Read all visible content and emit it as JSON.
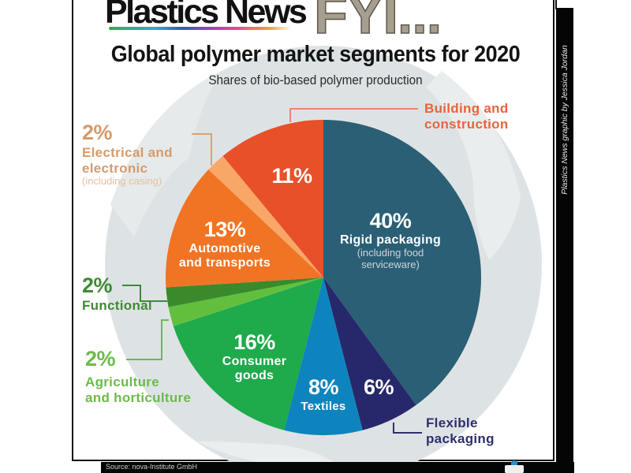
{
  "header": {
    "brand": "Plastics News",
    "tagline": "FYI...",
    "title": "Global polymer market segments for 2020",
    "subtitle": "Shares of bio-based polymer production"
  },
  "credit": "Plastics News graphic by Jessica Jordan",
  "source": "Source: nova-Institute GmbH",
  "chart_data": {
    "type": "pie",
    "title": "Global polymer market segments for 2020",
    "subtitle": "Shares of bio-based polymer production",
    "start_angle": "12 o'clock",
    "direction": "clockwise",
    "unit": "%",
    "slices": [
      {
        "label": "Rigid packaging",
        "note": "(including food serviceware)",
        "value": 40,
        "color": "#2b5f75"
      },
      {
        "label": "Flexible packaging",
        "note": "",
        "value": 6,
        "color": "#27286b"
      },
      {
        "label": "Textiles",
        "note": "",
        "value": 8,
        "color": "#0d84bd"
      },
      {
        "label": "Consumer goods",
        "note": "",
        "value": 16,
        "color": "#1faa4b"
      },
      {
        "label": "Agriculture and horticulture",
        "note": "",
        "value": 2,
        "color": "#62bf3e"
      },
      {
        "label": "Functional",
        "note": "",
        "value": 2,
        "color": "#3a8a2c"
      },
      {
        "label": "Automotive and transports",
        "note": "",
        "value": 13,
        "color": "#f07424"
      },
      {
        "label": "Electrical and electronic",
        "note": "(including casing)",
        "value": 2,
        "color": "#f8a766"
      },
      {
        "label": "Building and construction",
        "note": "",
        "value": 11,
        "color": "#e8502a"
      }
    ],
    "legend": "none (direct labels)"
  },
  "labels": {
    "rigid": {
      "pct": "40%",
      "name": "Rigid packaging",
      "note1": "(including food",
      "note2": "serviceware)"
    },
    "flexible": {
      "pct": "6%",
      "name1": "Flexible",
      "name2": "packaging"
    },
    "textiles": {
      "pct": "8%",
      "name": "Textiles"
    },
    "consumer": {
      "pct": "16%",
      "name1": "Consumer",
      "name2": "goods"
    },
    "agriculture": {
      "pct": "2%",
      "name1": "Agriculture",
      "name2": "and horticulture"
    },
    "functional": {
      "pct": "2%",
      "name": "Functional"
    },
    "automotive": {
      "pct": "13%",
      "name1": "Automotive",
      "name2": "and transports"
    },
    "electrical": {
      "pct": "2%",
      "name1": "Electrical and",
      "name2": "electronic",
      "note": "(including casing)"
    },
    "building": {
      "pct": "11%",
      "name1": "Building and",
      "name2": "construction"
    }
  },
  "colors": {
    "globe": "#dfe4e5",
    "globe_light": "#eef1f1",
    "label_electrical": "#d89a6a",
    "label_functional": "#3f8a34",
    "label_agriculture": "#6cbb4a",
    "label_building": "#e8643c",
    "label_flexible": "#2e2f6e"
  }
}
